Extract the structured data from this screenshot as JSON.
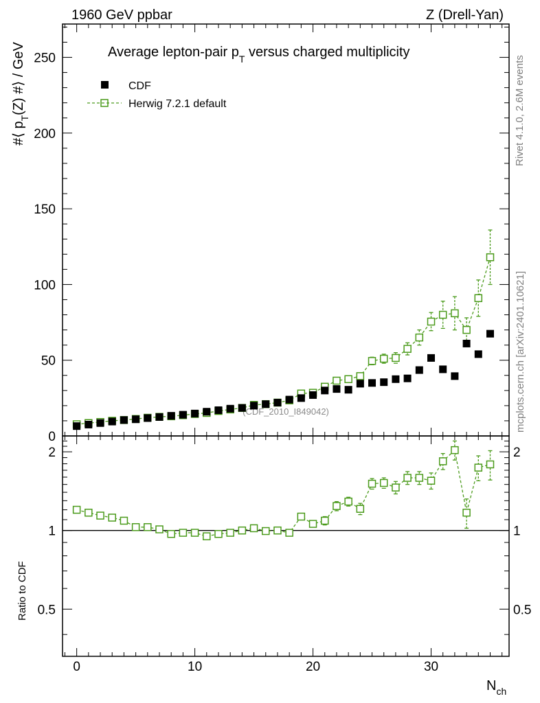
{
  "chart_data": {
    "type": "scatter",
    "header_left": "1960 GeV ppbar",
    "header_right": "Z (Drell-Yan)",
    "title_main": "Average lepton-pair p",
    "title_sub": "T",
    "title_rest": " versus charged multiplicity",
    "watermark": "(CDF_2010_I849042)",
    "side_label_1": "Rivet 4.1.0,  2.6M events",
    "side_label_2": "mcplots.cern.ch [arXiv:2401.10621]",
    "ylabel_main": "#⟨ p",
    "ylabel_sub": "T",
    "ylabel_rest": "(Z) #⟩ / GeV",
    "ratio_ylabel": "Ratio to CDF",
    "xlabel_main": "N",
    "xlabel_sub": "ch",
    "xlim": [
      -1.2,
      36.6
    ],
    "ylim": [
      0,
      272
    ],
    "ratio_ylim": [
      0.33,
      2.3
    ],
    "x_ticks": [
      "0",
      "10",
      "20",
      "30"
    ],
    "y_ticks": [
      "0",
      "50",
      "100",
      "150",
      "200",
      "250"
    ],
    "ratio_ticks": [
      "0.5",
      "1",
      "2"
    ],
    "legend": {
      "data_label": "CDF",
      "mc_label": "Herwig 7.2.1 default",
      "placement": "top-left"
    },
    "colors": {
      "data": "#000000",
      "mc": "#4a9a1a"
    },
    "x": [
      0,
      1,
      2,
      3,
      4,
      5,
      6,
      7,
      8,
      9,
      10,
      11,
      12,
      13,
      14,
      15,
      16,
      17,
      18,
      19,
      20,
      21,
      22,
      23,
      24,
      25,
      26,
      27,
      28,
      29,
      30,
      31,
      32,
      33,
      34,
      35
    ],
    "data_values": [
      6.5,
      7.5,
      8.5,
      9.5,
      10.5,
      11,
      11.8,
      12.5,
      13.3,
      14,
      14.8,
      16,
      17,
      18,
      18.5,
      20,
      21,
      22,
      24,
      25,
      27,
      30,
      31,
      30.5,
      34.5,
      35,
      35.5,
      37.5,
      38,
      43.5,
      51.5,
      44,
      39.5,
      61,
      54,
      67.5
    ],
    "mc_values": [
      7.7,
      8.5,
      9.2,
      10,
      10.5,
      11.2,
      12,
      12.6,
      13,
      13.7,
      14.5,
      15.2,
      16.5,
      17.5,
      18.5,
      20.5,
      21,
      22,
      23.5,
      28,
      28.5,
      32.5,
      36.5,
      37.5,
      39.5,
      49.5,
      51,
      51.5,
      57.5,
      65,
      75.5,
      80,
      81,
      70,
      91,
      118
    ],
    "mc_errors": [
      0.4,
      0.4,
      0.4,
      0.4,
      0.5,
      0.5,
      0.5,
      0.5,
      0.5,
      0.5,
      0.6,
      0.6,
      0.6,
      0.6,
      0.7,
      0.7,
      0.8,
      0.8,
      0.9,
      1.0,
      1.2,
      1.3,
      1.5,
      1.6,
      2,
      2.5,
      3,
      3.5,
      4,
      5,
      6,
      9,
      11,
      8,
      12,
      18
    ],
    "ratio_values": [
      1.2,
      1.17,
      1.14,
      1.12,
      1.09,
      1.03,
      1.03,
      1.01,
      0.97,
      0.98,
      0.98,
      0.95,
      0.97,
      0.98,
      1.0,
      1.02,
      0.995,
      1.0,
      0.98,
      1.13,
      1.06,
      1.09,
      1.24,
      1.29,
      1.21,
      1.51,
      1.52,
      1.46,
      1.59,
      1.59,
      1.55,
      1.84,
      2.03,
      1.17,
      1.74,
      1.79
    ],
    "ratio_errors": [
      0.02,
      0.02,
      0.02,
      0.02,
      0.02,
      0.02,
      0.02,
      0.02,
      0.02,
      0.02,
      0.02,
      0.02,
      0.02,
      0.02,
      0.02,
      0.02,
      0.02,
      0.02,
      0.02,
      0.03,
      0.03,
      0.04,
      0.05,
      0.05,
      0.06,
      0.07,
      0.07,
      0.08,
      0.09,
      0.09,
      0.11,
      0.13,
      0.17,
      0.15,
      0.19,
      0.23
    ]
  }
}
